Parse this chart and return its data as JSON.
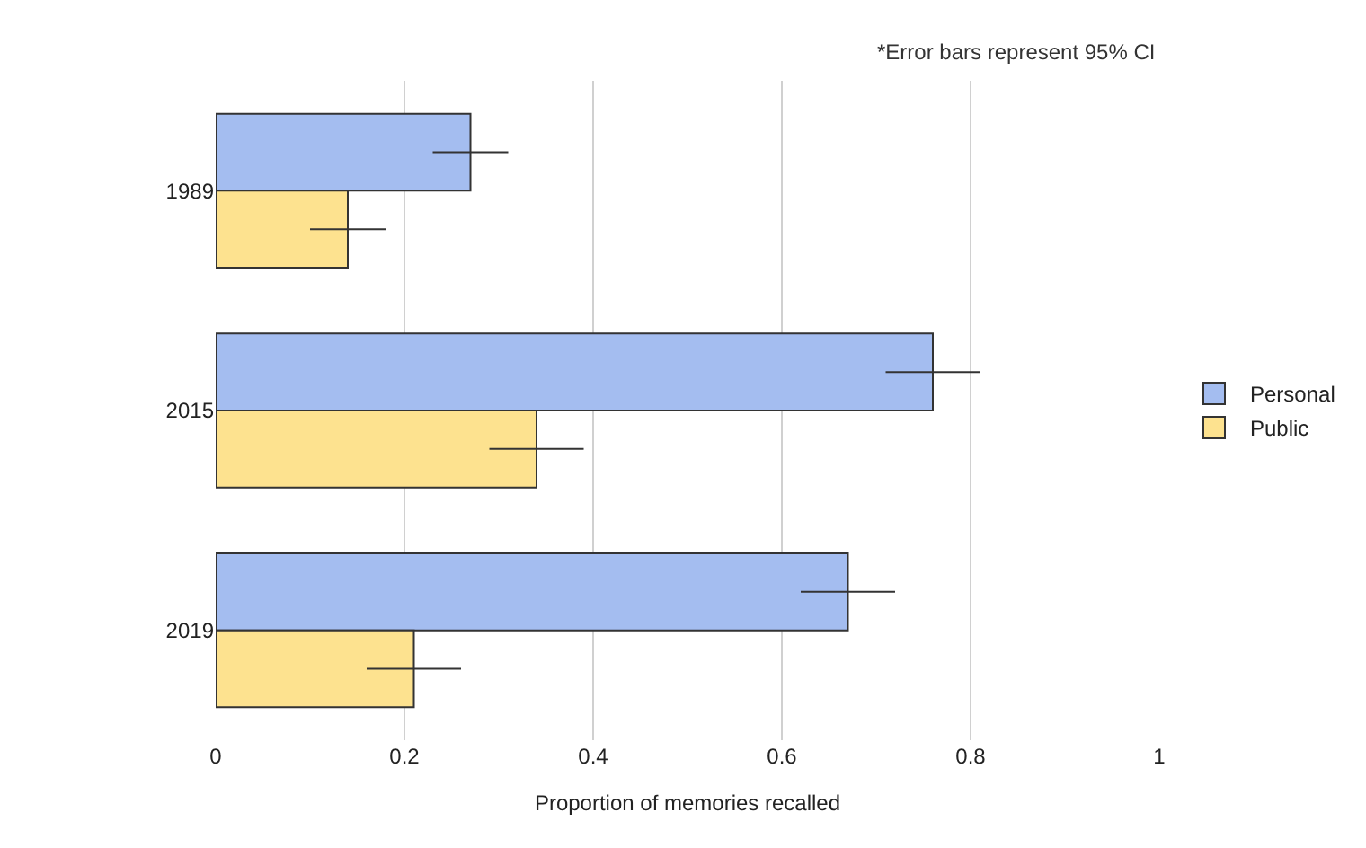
{
  "chart_data": {
    "type": "bar",
    "orientation": "horizontal",
    "xlabel": "Proportion of memories recalled",
    "categories": [
      "1989",
      "2015",
      "2019"
    ],
    "series": [
      {
        "name": "Personal",
        "color": "#a4bdf0",
        "values": [
          0.27,
          0.76,
          0.67
        ],
        "errors": [
          0.04,
          0.05,
          0.05
        ]
      },
      {
        "name": "Public",
        "color": "#fde28f",
        "values": [
          0.14,
          0.34,
          0.21
        ],
        "errors": [
          0.04,
          0.05,
          0.05
        ]
      }
    ],
    "xlim": [
      0,
      1
    ],
    "xticks": [
      0,
      0.2,
      0.4,
      0.6,
      0.8,
      1
    ],
    "grid": "x",
    "legend": "right",
    "annotations": [
      "*Error bars represent 95% CI"
    ]
  }
}
